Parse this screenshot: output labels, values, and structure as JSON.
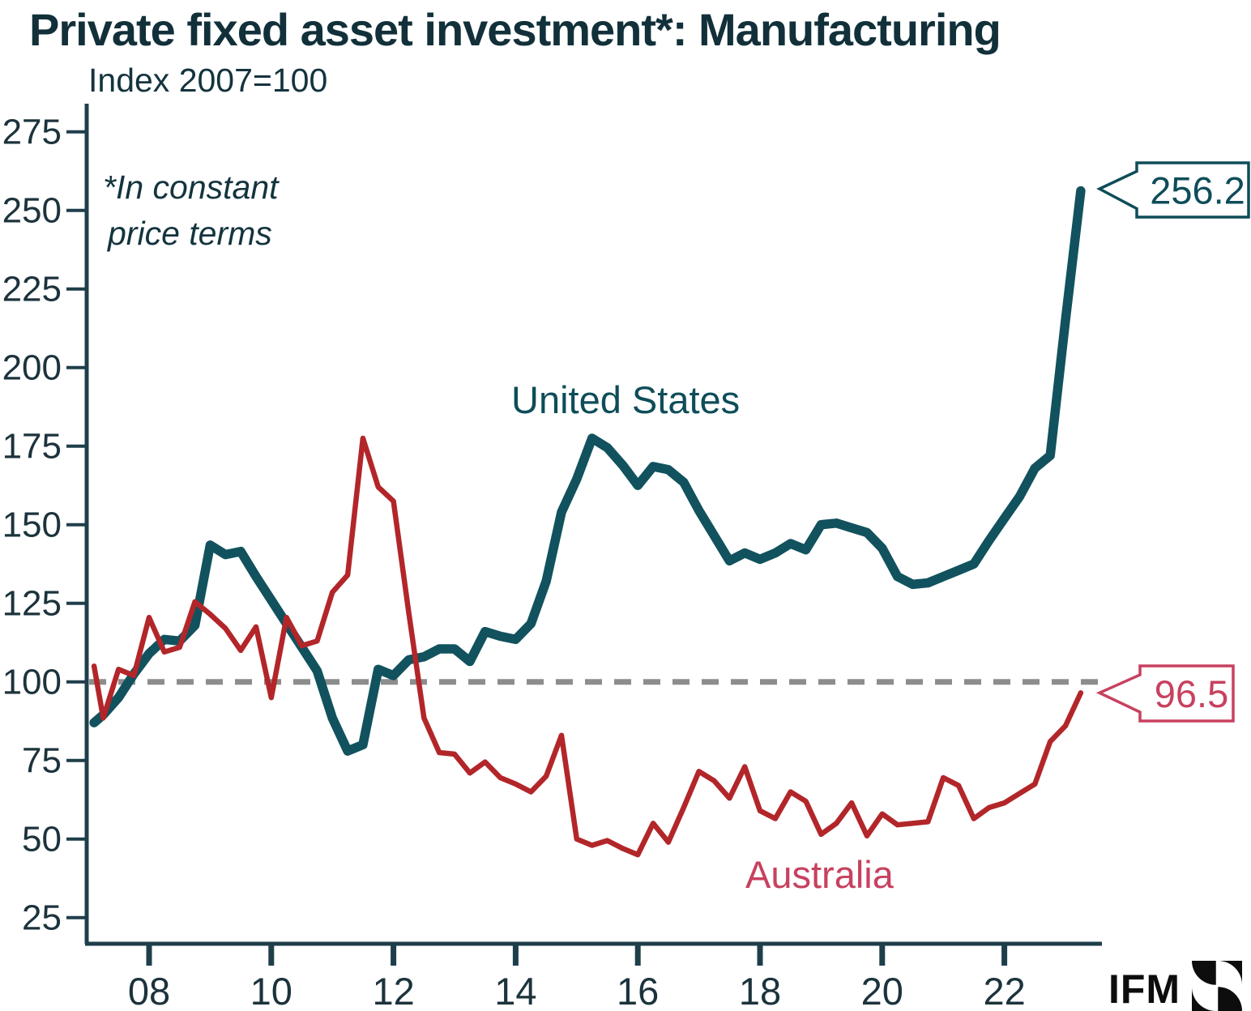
{
  "title": "Private fixed asset investment*: Manufacturing",
  "subtitle": "Index 2007=100",
  "footnote_line1": "*In constant",
  "footnote_line2": "price terms",
  "brand": {
    "name": "IFM",
    "mark": "ifm-pinwheel-logo"
  },
  "palette": {
    "us_line": "#11525e",
    "us_text": "#0e4d59",
    "au_line": "#b2262a",
    "au_text": "#c8415f",
    "axis": "#1e3f4a",
    "axis_text": "#1c333c",
    "reference_dash": "#8d8d8d"
  },
  "annotations": [
    {
      "label": "256.2",
      "series": "United States",
      "color": "#0e4d59"
    },
    {
      "label": "96.5",
      "series": "Australia",
      "color": "#c8415f"
    }
  ],
  "chart_data": {
    "type": "line",
    "title": "Private fixed asset investment*: Manufacturing",
    "subtitle_ylabel": "Index 2007=100",
    "note": "*In constant price terms",
    "x_axis": {
      "tick_years": [
        2008,
        2010,
        2012,
        2014,
        2016,
        2018,
        2020,
        2022
      ],
      "tick_labels": [
        "08",
        "10",
        "12",
        "14",
        "16",
        "18",
        "20",
        "22"
      ],
      "range": [
        2006.95,
        2023.6
      ]
    },
    "y_axis": {
      "ticks": [
        25,
        50,
        75,
        100,
        125,
        150,
        175,
        200,
        225,
        250,
        275
      ],
      "range": [
        16,
        284
      ]
    },
    "reference_line": {
      "value": 100,
      "style": "dashed",
      "color": "#8d8d8d"
    },
    "legend_position": "inline-labels",
    "grid": false,
    "series": [
      {
        "name": "United States",
        "color": "#11525e",
        "final_value": 256.2,
        "points": [
          [
            2007.1,
            87
          ],
          [
            2007.25,
            89.5
          ],
          [
            2007.5,
            95
          ],
          [
            2007.75,
            102.5
          ],
          [
            2008.0,
            109
          ],
          [
            2008.25,
            113.5
          ],
          [
            2008.5,
            113
          ],
          [
            2008.75,
            118
          ],
          [
            2009.0,
            143.5
          ],
          [
            2009.25,
            140.5
          ],
          [
            2009.5,
            141.5
          ],
          [
            2009.75,
            133.5
          ],
          [
            2010.0,
            126
          ],
          [
            2010.25,
            118.5
          ],
          [
            2010.5,
            111
          ],
          [
            2010.75,
            103.5
          ],
          [
            2011.0,
            88.5
          ],
          [
            2011.25,
            78
          ],
          [
            2011.5,
            80
          ],
          [
            2011.75,
            104
          ],
          [
            2012.0,
            102
          ],
          [
            2012.25,
            107
          ],
          [
            2012.5,
            108
          ],
          [
            2012.75,
            110.5
          ],
          [
            2013.0,
            110.5
          ],
          [
            2013.25,
            106.5
          ],
          [
            2013.5,
            116
          ],
          [
            2013.75,
            114.5
          ],
          [
            2014.0,
            113.5
          ],
          [
            2014.25,
            118.5
          ],
          [
            2014.5,
            132
          ],
          [
            2014.75,
            154
          ],
          [
            2015.0,
            164.5
          ],
          [
            2015.25,
            177.5
          ],
          [
            2015.5,
            174.5
          ],
          [
            2015.75,
            169
          ],
          [
            2016.0,
            162.5
          ],
          [
            2016.25,
            168.5
          ],
          [
            2016.5,
            167.5
          ],
          [
            2016.75,
            163.5
          ],
          [
            2017.0,
            154.5
          ],
          [
            2017.25,
            146.5
          ],
          [
            2017.5,
            138.5
          ],
          [
            2017.75,
            141
          ],
          [
            2018.0,
            139
          ],
          [
            2018.25,
            141
          ],
          [
            2018.5,
            144
          ],
          [
            2018.75,
            142
          ],
          [
            2019.0,
            150
          ],
          [
            2019.25,
            150.5
          ],
          [
            2019.5,
            149
          ],
          [
            2019.75,
            147.5
          ],
          [
            2020.0,
            142.5
          ],
          [
            2020.25,
            133.5
          ],
          [
            2020.5,
            131
          ],
          [
            2020.75,
            131.5
          ],
          [
            2021.0,
            133.5
          ],
          [
            2021.25,
            135.5
          ],
          [
            2021.5,
            137.5
          ],
          [
            2021.75,
            145
          ],
          [
            2022.0,
            152
          ],
          [
            2022.25,
            159
          ],
          [
            2022.5,
            168
          ],
          [
            2022.75,
            172
          ],
          [
            2023.0,
            215
          ],
          [
            2023.25,
            256.2
          ]
        ]
      },
      {
        "name": "Australia",
        "color": "#b2262a",
        "final_value": 96.5,
        "points": [
          [
            2007.1,
            105
          ],
          [
            2007.25,
            88.5
          ],
          [
            2007.5,
            104
          ],
          [
            2007.75,
            102
          ],
          [
            2008.0,
            120.5
          ],
          [
            2008.25,
            109.5
          ],
          [
            2008.5,
            111
          ],
          [
            2008.75,
            125.5
          ],
          [
            2009.0,
            121.5
          ],
          [
            2009.25,
            117
          ],
          [
            2009.5,
            110
          ],
          [
            2009.75,
            117.5
          ],
          [
            2010.0,
            95
          ],
          [
            2010.25,
            120.5
          ],
          [
            2010.5,
            111.5
          ],
          [
            2010.75,
            113
          ],
          [
            2011.0,
            128.5
          ],
          [
            2011.25,
            134
          ],
          [
            2011.5,
            177.5
          ],
          [
            2011.75,
            162
          ],
          [
            2012.0,
            157.5
          ],
          [
            2012.25,
            122
          ],
          [
            2012.5,
            88.5
          ],
          [
            2012.75,
            77.5
          ],
          [
            2013.0,
            77
          ],
          [
            2013.25,
            71
          ],
          [
            2013.5,
            74.5
          ],
          [
            2013.75,
            69.5
          ],
          [
            2014.0,
            67.5
          ],
          [
            2014.25,
            65
          ],
          [
            2014.5,
            70
          ],
          [
            2014.75,
            83
          ],
          [
            2015.0,
            50
          ],
          [
            2015.25,
            48
          ],
          [
            2015.5,
            49.5
          ],
          [
            2015.75,
            47
          ],
          [
            2016.0,
            45
          ],
          [
            2016.25,
            55
          ],
          [
            2016.5,
            49
          ],
          [
            2016.75,
            60
          ],
          [
            2017.0,
            71.5
          ],
          [
            2017.25,
            68.5
          ],
          [
            2017.5,
            63
          ],
          [
            2017.75,
            73
          ],
          [
            2018.0,
            59
          ],
          [
            2018.25,
            56.5
          ],
          [
            2018.5,
            65
          ],
          [
            2018.75,
            62
          ],
          [
            2019.0,
            51.5
          ],
          [
            2019.25,
            55
          ],
          [
            2019.5,
            61.5
          ],
          [
            2019.75,
            51
          ],
          [
            2020.0,
            58
          ],
          [
            2020.25,
            54.5
          ],
          [
            2020.5,
            55
          ],
          [
            2020.75,
            55.5
          ],
          [
            2021.0,
            69.5
          ],
          [
            2021.25,
            67
          ],
          [
            2021.5,
            56.5
          ],
          [
            2021.75,
            60
          ],
          [
            2022.0,
            61.5
          ],
          [
            2022.25,
            64.5
          ],
          [
            2022.5,
            67.5
          ],
          [
            2022.75,
            81
          ],
          [
            2023.0,
            86
          ],
          [
            2023.25,
            96.5
          ]
        ]
      }
    ]
  }
}
